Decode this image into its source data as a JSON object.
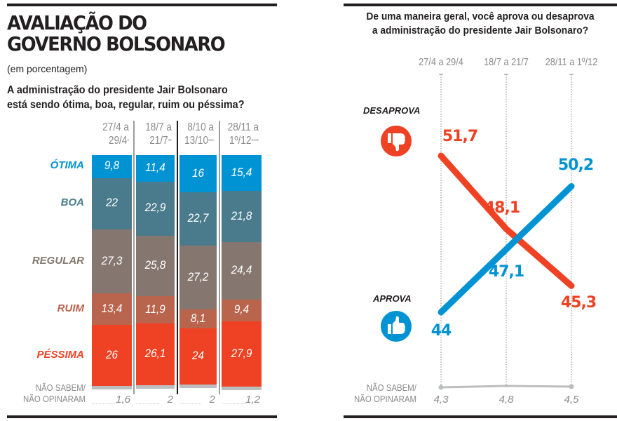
{
  "left_panel": {
    "title_line1": "AVALIAÇÃO DO",
    "title_line2": "GOVERNO BOLSONARO",
    "subtitle": "(em porcentagem)",
    "question_line1": "A administração do presidente Jair Bolsonaro",
    "question_line2": "está sendo ótima, boa, regular, ruim ou péssima?",
    "no_opinion_label_line1": "NÃO SABEM/",
    "no_opinion_label_line2": "NÃO OPINARAM"
  },
  "right_panel": {
    "question_line1": "De uma maneira geral, você aprova ou desaprova",
    "question_line2": "a administração do presidente Jair Bolsonaro?",
    "disapprove_label": "DESAPROVA",
    "approve_label": "APROVA",
    "disapprove_icon": "thumbs-down-icon",
    "approve_icon": "thumbs-up-icon",
    "no_opinion_label_line1": "NÃO SABEM/",
    "no_opinion_label_line2": "NÃO OPINARAM"
  },
  "colors": {
    "otima": "#0093d4",
    "boa": "#4a7b8c",
    "regular": "#85776f",
    "ruim": "#b9644d",
    "pessima": "#ef4123",
    "nao_sabem": "#bcbdbf",
    "aprova": "#0093d4",
    "desaprova": "#ef4123",
    "text": "#231f20",
    "muted": "#8a8a8a"
  },
  "chart_data": [
    {
      "type": "bar",
      "stacked": true,
      "title": "AVALIAÇÃO DO GOVERNO BOLSONARO",
      "subtitle": "(em porcentagem)",
      "ylabel": "%",
      "categories": [
        {
          "line1": "27/4 a",
          "line2": "29/4",
          "footnote": "*"
        },
        {
          "line1": "18/7 a",
          "line2": "21/7",
          "footnote": "**"
        },
        {
          "line1": "8/10 a",
          "line2": "13/10",
          "footnote": "***"
        },
        {
          "line1": "28/11 a",
          "line2": "1º/12",
          "footnote": "****"
        }
      ],
      "series": [
        {
          "key": "otima",
          "name": "ÓTIMA",
          "values": [
            "9,8",
            "11,4",
            "16",
            "15,4"
          ],
          "numeric": [
            9.8,
            11.4,
            16,
            15.4
          ]
        },
        {
          "key": "boa",
          "name": "BOA",
          "values": [
            "22",
            "22,9",
            "22,7",
            "21,8"
          ],
          "numeric": [
            22,
            22.9,
            22.7,
            21.8
          ]
        },
        {
          "key": "regular",
          "name": "REGULAR",
          "values": [
            "27,3",
            "25,8",
            "27,2",
            "24,4"
          ],
          "numeric": [
            27.3,
            25.8,
            27.2,
            24.4
          ]
        },
        {
          "key": "ruim",
          "name": "RUIM",
          "values": [
            "13,4",
            "11,9",
            "8,1",
            "9,4"
          ],
          "numeric": [
            13.4,
            11.9,
            8.1,
            9.4
          ]
        },
        {
          "key": "pessima",
          "name": "PÉSSIMA",
          "values": [
            "26",
            "26,1",
            "24",
            "27,9"
          ],
          "numeric": [
            26,
            26.1,
            24,
            27.9
          ]
        },
        {
          "key": "nao_sabem",
          "name": "NÃO SABEM/NÃO OPINARAM",
          "values": [
            "1,6",
            "2",
            "2",
            "1,2"
          ],
          "numeric": [
            1.6,
            2,
            2,
            1.2
          ]
        }
      ],
      "ylim": [
        0,
        100
      ]
    },
    {
      "type": "line",
      "title": "De uma maneira geral, você aprova ou desaprova a administração do presidente Jair Bolsonaro?",
      "x": [
        "27/4 a 29/4",
        "18/7 a 21/7",
        "28/11 a 1º/12"
      ],
      "series": [
        {
          "key": "desaprova",
          "name": "DESAPROVA",
          "values": [
            "51,7",
            "48,1",
            "45,3"
          ],
          "numeric": [
            51.7,
            48.1,
            45.3
          ]
        },
        {
          "key": "aprova",
          "name": "APROVA",
          "values": [
            "44",
            "47,1",
            "50,2"
          ],
          "numeric": [
            44,
            47.1,
            50.2
          ]
        },
        {
          "key": "nao_sabem",
          "name": "NÃO SABEM/NÃO OPINARAM",
          "values": [
            "4,3",
            "4,8",
            "4,5"
          ],
          "numeric": [
            4.3,
            4.8,
            4.5
          ]
        }
      ],
      "ylim": [
        42,
        54
      ],
      "grid": "vertical dotted guides at each x"
    }
  ]
}
